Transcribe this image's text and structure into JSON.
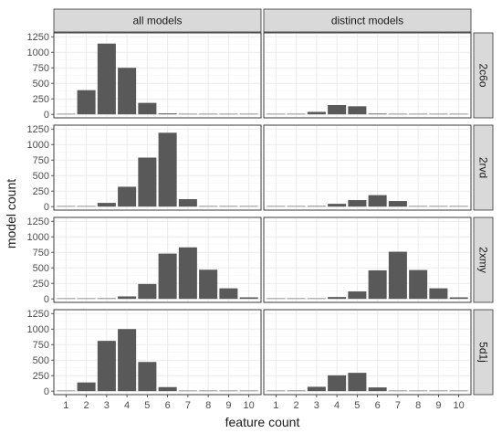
{
  "chart_data": {
    "type": "bar",
    "xlabel": "feature count",
    "ylabel": "model count",
    "columns": [
      "all models",
      "distinct models"
    ],
    "rows": [
      "2c6o",
      "2rvd",
      "2xmy",
      "5d1j"
    ],
    "x_ticks": [
      1,
      2,
      3,
      4,
      5,
      6,
      7,
      8,
      9,
      10
    ],
    "y_ticks": [
      0,
      250,
      500,
      750,
      1000,
      1250
    ],
    "ylim": [
      0,
      1250
    ],
    "panels": [
      {
        "row": "2c6o",
        "column": "all models",
        "x": [
          1,
          2,
          3,
          4,
          5,
          6,
          7,
          8,
          9,
          10
        ],
        "values": [
          5,
          390,
          1140,
          750,
          185,
          15,
          0,
          0,
          0,
          0
        ]
      },
      {
        "row": "2c6o",
        "column": "distinct models",
        "x": [
          1,
          2,
          3,
          4,
          5,
          6,
          7,
          8,
          9,
          10
        ],
        "values": [
          0,
          8,
          40,
          150,
          130,
          12,
          0,
          0,
          0,
          0
        ]
      },
      {
        "row": "2rvd",
        "column": "all models",
        "x": [
          1,
          2,
          3,
          4,
          5,
          6,
          7,
          8,
          9,
          10
        ],
        "values": [
          0,
          5,
          60,
          320,
          790,
          1190,
          120,
          0,
          0,
          0
        ]
      },
      {
        "row": "2rvd",
        "column": "distinct models",
        "x": [
          1,
          2,
          3,
          4,
          5,
          6,
          7,
          8,
          9,
          10
        ],
        "values": [
          0,
          3,
          10,
          45,
          105,
          185,
          90,
          0,
          0,
          0
        ]
      },
      {
        "row": "2xmy",
        "column": "all models",
        "x": [
          1,
          2,
          3,
          4,
          5,
          6,
          7,
          8,
          9,
          10
        ],
        "values": [
          0,
          0,
          10,
          40,
          240,
          730,
          830,
          470,
          170,
          25
        ]
      },
      {
        "row": "2xmy",
        "column": "distinct models",
        "x": [
          1,
          2,
          3,
          4,
          5,
          6,
          7,
          8,
          9,
          10
        ],
        "values": [
          0,
          0,
          8,
          30,
          120,
          460,
          760,
          465,
          170,
          25
        ]
      },
      {
        "row": "5d1j",
        "column": "all models",
        "x": [
          1,
          2,
          3,
          4,
          5,
          6,
          7,
          8,
          9,
          10
        ],
        "values": [
          5,
          140,
          810,
          1000,
          470,
          65,
          0,
          0,
          0,
          0
        ]
      },
      {
        "row": "5d1j",
        "column": "distinct models",
        "x": [
          1,
          2,
          3,
          4,
          5,
          6,
          7,
          8,
          9,
          10
        ],
        "values": [
          0,
          10,
          70,
          255,
          295,
          60,
          0,
          0,
          0,
          0
        ]
      }
    ],
    "grid": true,
    "legend": "none",
    "colors": {
      "bar": "#595959",
      "strip": "#d9d9d9",
      "grid": "#ebebeb"
    }
  }
}
